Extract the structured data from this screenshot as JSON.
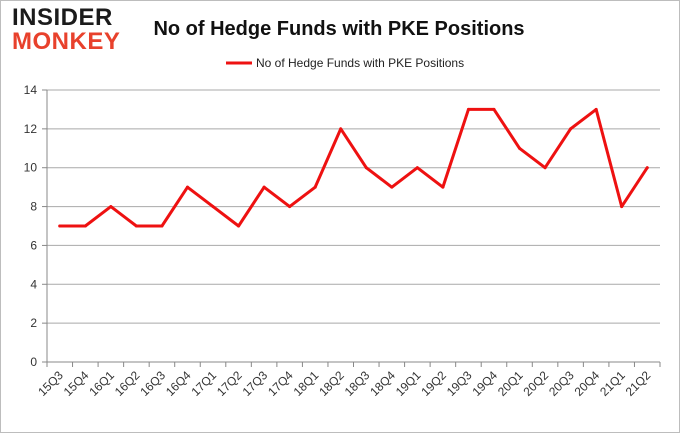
{
  "logo": {
    "line1": "INSIDER",
    "line2": "MONKEY"
  },
  "chart_data": {
    "type": "line",
    "title": "No of Hedge Funds with PKE Positions",
    "xlabel": "",
    "ylabel": "",
    "categories": [
      "15Q3",
      "15Q4",
      "16Q1",
      "16Q2",
      "16Q3",
      "16Q4",
      "17Q1",
      "17Q2",
      "17Q3",
      "17Q4",
      "18Q1",
      "18Q2",
      "18Q3",
      "18Q4",
      "19Q1",
      "19Q2",
      "19Q3",
      "19Q4",
      "20Q1",
      "20Q2",
      "20Q3",
      "20Q4",
      "21Q1",
      "21Q2"
    ],
    "series": [
      {
        "name": "No of Hedge Funds with PKE Positions",
        "color": "#ee1111",
        "values": [
          7,
          7,
          8,
          7,
          7,
          9,
          8,
          7,
          9,
          8,
          9,
          12,
          10,
          9,
          10,
          9,
          13,
          13,
          11,
          10,
          12,
          13,
          8,
          10
        ]
      }
    ],
    "ylim": [
      0,
      14
    ],
    "yticks": [
      0,
      2,
      4,
      6,
      8,
      10,
      12,
      14
    ],
    "grid": true,
    "legend": "top-center"
  }
}
